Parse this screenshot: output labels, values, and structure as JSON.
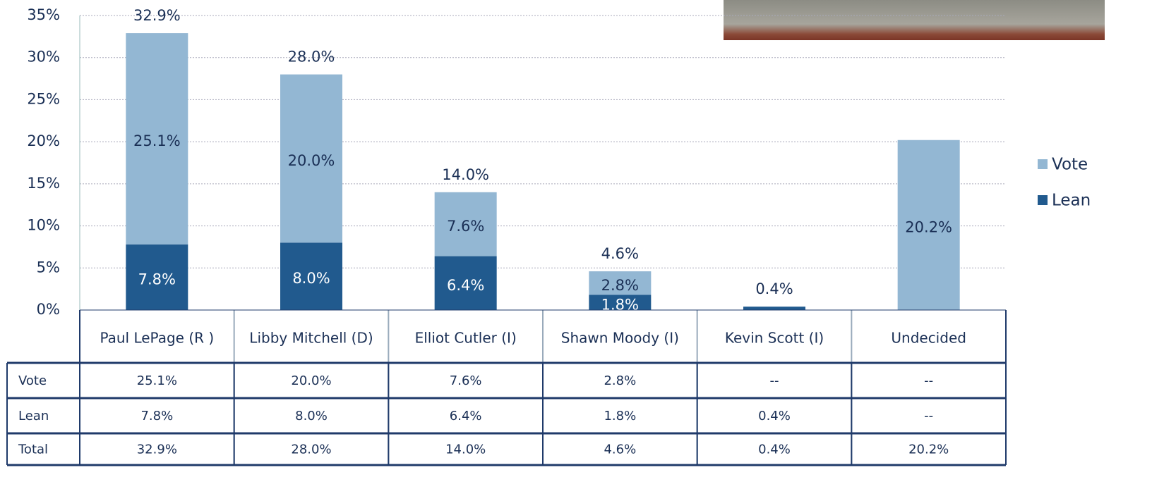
{
  "chart_data": {
    "type": "stacked_bar",
    "categories": [
      "Paul LePage (R )",
      "Libby Mitchell (D)",
      "Elliot Cutler (I)",
      "Shawn Moody (I)",
      "Kevin Scott (I)",
      "Undecided"
    ],
    "series": [
      {
        "name": "Lean",
        "color": "#215a8e",
        "values": [
          7.8,
          8.0,
          6.4,
          1.8,
          0.4,
          null
        ],
        "value_labels": [
          "7.8%",
          "8.0%",
          "6.4%",
          "1.8%",
          null,
          null
        ]
      },
      {
        "name": "Vote",
        "color": "#93b7d3",
        "values": [
          25.1,
          20.0,
          7.6,
          2.8,
          null,
          20.2
        ],
        "value_labels": [
          "25.1%",
          "20.0%",
          "7.6%",
          "2.8%",
          null,
          "20.2%"
        ]
      }
    ],
    "totals": {
      "values": [
        32.9,
        28.0,
        14.0,
        4.6,
        0.4,
        null
      ],
      "value_labels": [
        "32.9%",
        "28.0%",
        "14.0%",
        "4.6%",
        "0.4%",
        null
      ]
    },
    "ylim": [
      0,
      35
    ],
    "yticks": [
      {
        "value": 0,
        "label": "0%"
      },
      {
        "value": 5,
        "label": "5%"
      },
      {
        "value": 10,
        "label": "10%"
      },
      {
        "value": 15,
        "label": "15%"
      },
      {
        "value": 20,
        "label": "20%"
      },
      {
        "value": 25,
        "label": "25%"
      },
      {
        "value": 30,
        "label": "30%"
      },
      {
        "value": 35,
        "label": "35%"
      }
    ],
    "grid": true,
    "legend": "right"
  },
  "table": {
    "rows": [
      [
        "Vote",
        "25.1%",
        "20.0%",
        "7.6%",
        "2.8%",
        "--",
        "--"
      ],
      [
        "Lean",
        "7.8%",
        "8.0%",
        "6.4%",
        "1.8%",
        "0.4%",
        "--"
      ],
      [
        "Total",
        "32.9%",
        "28.0%",
        "14.0%",
        "4.6%",
        "0.4%",
        "20.2%"
      ]
    ]
  }
}
